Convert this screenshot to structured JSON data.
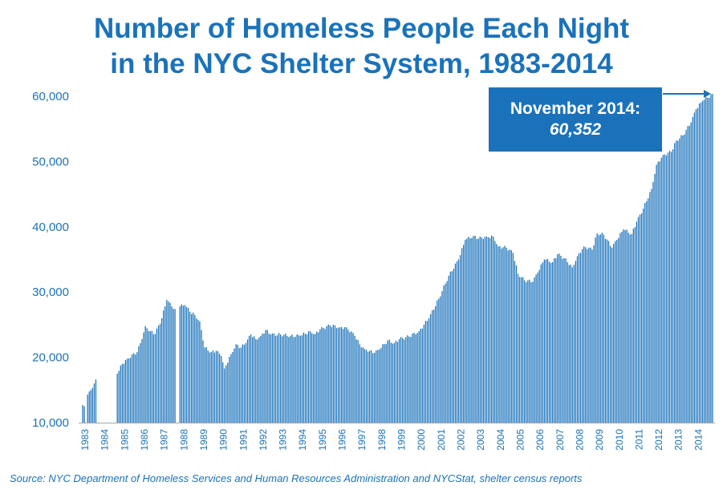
{
  "title_line1": "Number of Homeless People Each Night",
  "title_line2": "in the NYC Shelter System, 1983-2014",
  "callout": {
    "line1": "November 2014:",
    "line2": "60,352"
  },
  "source": "Source:  NYC Department of Homeless Services and Human Resources Administration and NYCStat, shelter census reports",
  "colors": {
    "bars": "#1a72bb",
    "text": "#1a72bb",
    "axis": "#a6a6a6"
  },
  "chart_data": {
    "type": "bar",
    "title": "Number of Homeless People Each Night in the NYC Shelter System, 1983-2014",
    "xlabel": "",
    "ylabel": "",
    "ylim": [
      10000,
      60000
    ],
    "yticks": [
      "10,000",
      "20,000",
      "30,000",
      "40,000",
      "50,000",
      "60,000"
    ],
    "ytick_values": [
      10000,
      20000,
      30000,
      40000,
      50000,
      60000
    ],
    "year_labels": [
      "1983",
      "1984",
      "1985",
      "1986",
      "1987",
      "1988",
      "1989",
      "1990",
      "1991",
      "1992",
      "1993",
      "1994",
      "1995",
      "1996",
      "1997",
      "1998",
      "1999",
      "2000",
      "2001",
      "2002",
      "2003",
      "2004",
      "2005",
      "2006",
      "2007",
      "2008",
      "2009",
      "2010",
      "2011",
      "2012",
      "2013",
      "2014"
    ],
    "bar_interval": "monthly, gaps where data are missing",
    "anchors": [
      [
        "1983-01",
        12700
      ],
      [
        "1983-02",
        12500
      ],
      [
        "1983-03",
        null
      ],
      [
        "1983-04",
        14300
      ],
      [
        "1983-06",
        15000
      ],
      [
        "1983-08",
        16000
      ],
      [
        "1983-09",
        16600
      ],
      [
        "1983-10",
        null
      ],
      [
        "1984-09",
        null
      ],
      [
        "1984-10",
        17500
      ],
      [
        "1985-01",
        19000
      ],
      [
        "1985-04",
        19800
      ],
      [
        "1985-10",
        20800
      ],
      [
        "1986-01",
        22800
      ],
      [
        "1986-03",
        24800
      ],
      [
        "1986-06",
        24000
      ],
      [
        "1986-09",
        23600
      ],
      [
        "1987-01",
        26000
      ],
      [
        "1987-04",
        28800
      ],
      [
        "1987-07",
        27800
      ],
      [
        "1987-09",
        27400
      ],
      [
        "1987-10",
        null
      ],
      [
        "1987-11",
        null
      ],
      [
        "1987-12",
        27800
      ],
      [
        "1988-03",
        28000
      ],
      [
        "1988-06",
        27000
      ],
      [
        "1988-09",
        26500
      ],
      [
        "1988-12",
        25500
      ],
      [
        "1989-03",
        21500
      ],
      [
        "1989-07",
        20800
      ],
      [
        "1989-10",
        21000
      ],
      [
        "1990-01",
        20200
      ],
      [
        "1990-03",
        18300
      ],
      [
        "1990-07",
        20500
      ],
      [
        "1990-10",
        22000
      ],
      [
        "1991-01",
        21500
      ],
      [
        "1991-04",
        22200
      ],
      [
        "1991-07",
        23500
      ],
      [
        "1991-10",
        22800
      ],
      [
        "1992-01",
        23300
      ],
      [
        "1992-04",
        24200
      ],
      [
        "1992-07",
        23500
      ],
      [
        "1993-01",
        23500
      ],
      [
        "1993-07",
        23300
      ],
      [
        "1994-01",
        23300
      ],
      [
        "1994-07",
        24000
      ],
      [
        "1994-10",
        23600
      ],
      [
        "1995-01",
        24300
      ],
      [
        "1995-07",
        24900
      ],
      [
        "1996-01",
        24600
      ],
      [
        "1996-05",
        24600
      ],
      [
        "1996-10",
        23300
      ],
      [
        "1997-01",
        22000
      ],
      [
        "1997-04",
        21300
      ],
      [
        "1997-07",
        21000
      ],
      [
        "1997-10",
        20700
      ],
      [
        "1998-01",
        21200
      ],
      [
        "1998-06",
        22600
      ],
      [
        "1998-10",
        22200
      ],
      [
        "1999-01",
        22800
      ],
      [
        "1999-07",
        23200
      ],
      [
        "2000-01",
        24000
      ],
      [
        "2000-07",
        26000
      ],
      [
        "2001-01",
        29000
      ],
      [
        "2001-07",
        32500
      ],
      [
        "2002-01",
        35000
      ],
      [
        "2002-05",
        38000
      ],
      [
        "2002-10",
        38600
      ],
      [
        "2003-01",
        38200
      ],
      [
        "2003-06",
        38500
      ],
      [
        "2003-10",
        38500
      ],
      [
        "2004-01",
        37000
      ],
      [
        "2004-06",
        36800
      ],
      [
        "2004-10",
        36000
      ],
      [
        "2005-01",
        32800
      ],
      [
        "2005-05",
        31800
      ],
      [
        "2005-10",
        31600
      ],
      [
        "2006-01",
        33000
      ],
      [
        "2006-05",
        35000
      ],
      [
        "2006-10",
        34600
      ],
      [
        "2007-01",
        35800
      ],
      [
        "2007-05",
        35200
      ],
      [
        "2007-10",
        33800
      ],
      [
        "2008-01",
        35500
      ],
      [
        "2008-05",
        37000
      ],
      [
        "2008-10",
        36500
      ],
      [
        "2009-01",
        39000
      ],
      [
        "2009-05",
        38800
      ],
      [
        "2009-10",
        36800
      ],
      [
        "2010-01",
        38000
      ],
      [
        "2010-05",
        39600
      ],
      [
        "2010-10",
        38900
      ],
      [
        "2011-01",
        40800
      ],
      [
        "2011-05",
        42800
      ],
      [
        "2011-10",
        45800
      ],
      [
        "2012-01",
        49500
      ],
      [
        "2012-05",
        51000
      ],
      [
        "2012-10",
        51500
      ],
      [
        "2013-01",
        53200
      ],
      [
        "2013-05",
        54000
      ],
      [
        "2013-10",
        56000
      ],
      [
        "2014-01",
        58000
      ],
      [
        "2014-05",
        59300
      ],
      [
        "2014-11",
        60352
      ]
    ]
  }
}
